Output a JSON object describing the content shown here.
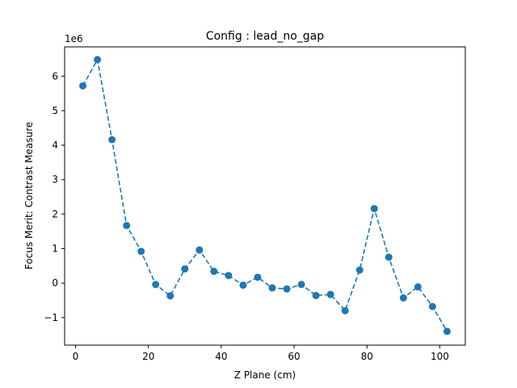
{
  "chart_data": {
    "type": "line",
    "title": "Config : lead_no_gap",
    "xlabel": "Z Plane (cm)",
    "ylabel": "Focus Merit: Contrast Measure",
    "y_offset_label": "1e6",
    "xlim": [
      -3,
      107
    ],
    "ylim": [
      -1.8,
      6.85
    ],
    "x_ticks": [
      0,
      20,
      40,
      60,
      80,
      100
    ],
    "y_ticks": [
      -1,
      0,
      1,
      2,
      3,
      4,
      5,
      6
    ],
    "y_tick_labels": [
      "−1",
      "0",
      "1",
      "2",
      "3",
      "4",
      "5",
      "6"
    ],
    "grid": false,
    "line_style": "dashed",
    "marker": "circle",
    "color": "#1f77b4",
    "series": [
      {
        "x": [
          2,
          6,
          10,
          14,
          18,
          22,
          26,
          30,
          34,
          38,
          42,
          46,
          50,
          54,
          58,
          62,
          66,
          70,
          74,
          78,
          82,
          86,
          90,
          94,
          98,
          102
        ],
        "y": [
          5.72,
          6.48,
          4.16,
          1.67,
          0.92,
          -0.04,
          -0.37,
          0.41,
          0.96,
          0.34,
          0.22,
          -0.06,
          0.17,
          -0.14,
          -0.17,
          -0.04,
          -0.36,
          -0.33,
          -0.8,
          0.38,
          2.16,
          0.75,
          -0.43,
          -0.11,
          -0.68,
          -1.4
        ]
      }
    ]
  }
}
